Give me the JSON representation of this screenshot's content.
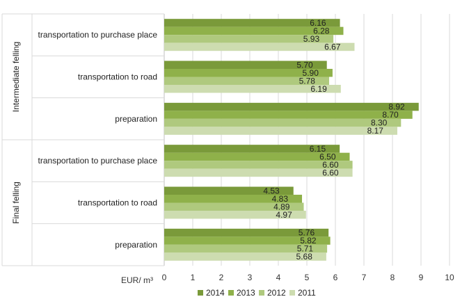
{
  "chart_data": {
    "type": "bar",
    "orientation": "horizontal",
    "xlabel": "EUR/ m³",
    "xlim": [
      0,
      10
    ],
    "xticks": [
      "0",
      "1",
      "2",
      "3",
      "4",
      "5",
      "6",
      "7",
      "8",
      "9",
      "10"
    ],
    "grid": "vertical",
    "legend_position": "bottom",
    "series": [
      {
        "name": "2014",
        "color": "#7a9a3a"
      },
      {
        "name": "2013",
        "color": "#8fb14a"
      },
      {
        "name": "2012",
        "color": "#afc97e"
      },
      {
        "name": "2011",
        "color": "#cddcb0"
      }
    ],
    "groups": [
      {
        "name": "Intermediate felling",
        "categories": [
          {
            "label": "transportation to purchase place",
            "values": [
              6.16,
              6.28,
              5.93,
              6.67
            ],
            "labels": [
              "6.16",
              "6.28",
              "5.93",
              "6.67"
            ]
          },
          {
            "label": "transportation to road",
            "values": [
              5.7,
              5.9,
              5.78,
              6.19
            ],
            "labels": [
              "5.70",
              "5.90",
              "5.78",
              "6.19"
            ]
          },
          {
            "label": "preparation",
            "values": [
              8.92,
              8.7,
              8.3,
              8.17
            ],
            "labels": [
              "8.92",
              "8.70",
              "8.30",
              "8.17"
            ]
          }
        ]
      },
      {
        "name": "Final felling",
        "categories": [
          {
            "label": "transportation to purchase place",
            "values": [
              6.15,
              6.5,
              6.6,
              6.6
            ],
            "labels": [
              "6.15",
              "6.50",
              "6.60",
              "6.60"
            ]
          },
          {
            "label": "transportation to road",
            "values": [
              4.53,
              4.83,
              4.89,
              4.97
            ],
            "labels": [
              "4.53",
              "4.83",
              "4.89",
              "4.97"
            ]
          },
          {
            "label": "preparation",
            "values": [
              5.76,
              5.82,
              5.71,
              5.68
            ],
            "labels": [
              "5.76",
              "5.82",
              "5.71",
              "5.68"
            ]
          }
        ]
      }
    ]
  }
}
